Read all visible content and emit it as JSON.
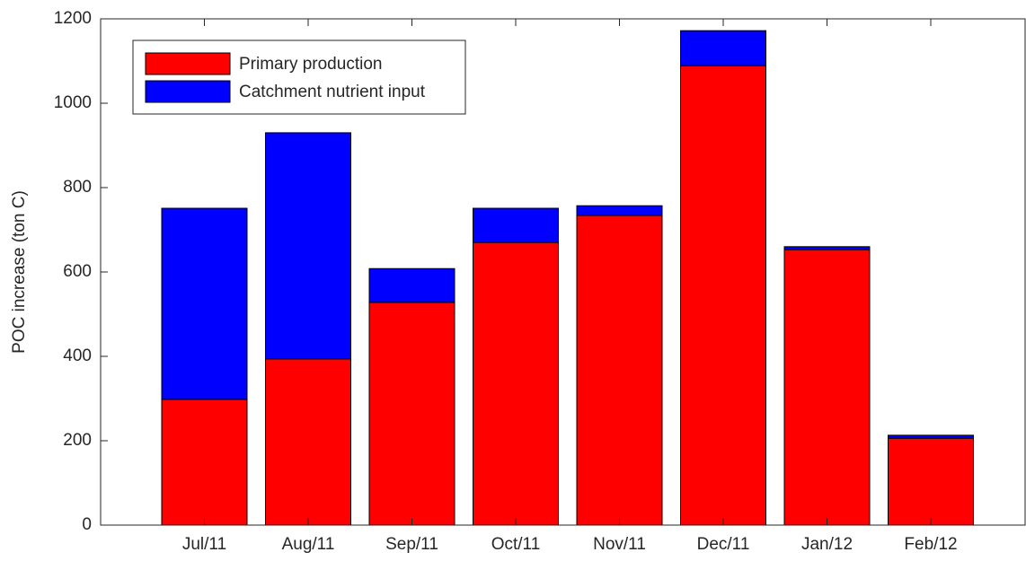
{
  "chart_data": {
    "type": "stacked_bar",
    "y_label": "POC increase (ton C)",
    "categories": [
      "Jul/11",
      "Aug/11",
      "Sep/11",
      "Oct/11",
      "Nov/11",
      "Dec/11",
      "Jan/12",
      "Feb/12"
    ],
    "series": [
      {
        "name": "Primary production",
        "color": "#ff0000",
        "values": [
          298,
          394,
          528,
          670,
          734,
          1089,
          653,
          206
        ]
      },
      {
        "name": "Catchment nutrient input",
        "color": "#0000ff",
        "values": [
          453,
          536,
          80,
          81,
          23,
          83,
          7,
          7
        ]
      }
    ],
    "ylim": [
      0,
      1200
    ],
    "yticks": [
      0,
      200,
      400,
      600,
      800,
      1000,
      1200
    ],
    "legend": "upper left"
  }
}
